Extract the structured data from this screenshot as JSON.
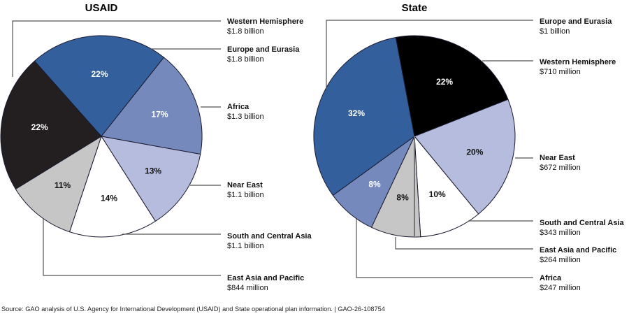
{
  "chart_data": [
    {
      "type": "pie",
      "title": "USAID",
      "colors": {
        "Europe and Eurasia": "#33609c",
        "Africa": "#7589bd",
        "Near East": "#b5bcdd",
        "South and Central Asia": "#ffffff",
        "East Asia and Pacific": "#c6c6c6",
        "Western Hemisphere": "#231f20"
      },
      "slices": [
        {
          "label": "Europe and Eurasia",
          "percent": 22,
          "percent_label": "22%",
          "amount": "$1.8 billion",
          "text_color": "#ffffff"
        },
        {
          "label": "Africa",
          "percent": 17,
          "percent_label": "17%",
          "amount": "$1.3 billion",
          "text_color": "#ffffff"
        },
        {
          "label": "Near East",
          "percent": 13,
          "percent_label": "13%",
          "amount": "$1.1 billion",
          "text_color": "#111111"
        },
        {
          "label": "South and Central Asia",
          "percent": 14,
          "percent_label": "14%",
          "amount": "$1.1 billion",
          "text_color": "#111111"
        },
        {
          "label": "East Asia and Pacific",
          "percent": 11,
          "percent_label": "11%",
          "amount": "$844 million",
          "text_color": "#111111"
        },
        {
          "label": "Western Hemisphere",
          "percent": 22,
          "percent_label": "22%",
          "amount": "$1.8 billion",
          "text_color": "#ffffff"
        }
      ],
      "legend_order": [
        "Western Hemisphere",
        "Europe and Eurasia",
        "Africa",
        "Near East",
        "South and Central Asia",
        "East Asia and Pacific"
      ],
      "legend_placement": "right"
    },
    {
      "type": "pie",
      "title": "State",
      "colors": {
        "Western Hemisphere": "#000000",
        "Near East": "#b5bcdd",
        "South and Central Asia": "#ffffff",
        "East Asia and Pacific": "#c6c6c6",
        "Africa": "#7589bd",
        "Europe and Eurasia": "#33609c"
      },
      "slices": [
        {
          "label": "Western Hemisphere",
          "percent": 22,
          "percent_label": "22%",
          "amount": "$710 million",
          "text_color": "#ffffff"
        },
        {
          "label": "Near East",
          "percent": 20,
          "percent_label": "20%",
          "amount": "$672 million",
          "text_color": "#111111"
        },
        {
          "label": "South and Central Asia",
          "percent": 10,
          "percent_label": "10%",
          "amount": "$343 million",
          "text_color": "#111111"
        },
        {
          "label": "East Asia and Pacific",
          "percent": 8,
          "percent_label": "8%",
          "amount": "$264 million",
          "text_color": "#111111"
        },
        {
          "label": "Africa",
          "percent": 8,
          "percent_label": "8%",
          "amount": "$247 million",
          "text_color": "#ffffff"
        },
        {
          "label": "Europe and Eurasia",
          "percent": 32,
          "percent_label": "32%",
          "amount": "$1 billion",
          "text_color": "#ffffff"
        }
      ],
      "legend_order": [
        "Europe and Eurasia",
        "Western Hemisphere",
        "Near East",
        "South and Central Asia",
        "East Asia and Pacific",
        "Africa"
      ],
      "legend_placement": "right"
    }
  ],
  "source": "Source: GAO analysis of U.S. Agency for International Development (USAID) and State operational plan information.  |  GAO-26-108754"
}
